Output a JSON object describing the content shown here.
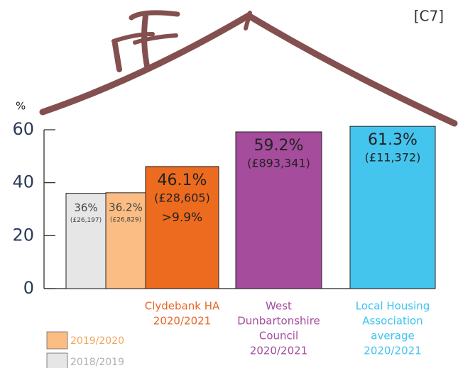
{
  "annotation": "[C7]",
  "chart_data": {
    "type": "bar",
    "y_label": "%",
    "ylim": [
      0,
      60
    ],
    "yticks": [
      0,
      20,
      40,
      60
    ],
    "bars": [
      {
        "name": "2018/2019",
        "value": 36,
        "value_label": "36%",
        "amount": "(£26,197)",
        "color": "#e6e6e6",
        "legend_color": "#b0b0b0"
      },
      {
        "name": "2019/2020",
        "value": 36.2,
        "value_label": "36.2%",
        "amount": "(£26,829)",
        "color": "#fbbd84",
        "legend_color": "#f2a65a"
      },
      {
        "label": [
          "Clydebank HA",
          "2020/2021"
        ],
        "value": 46.1,
        "value_label": "46.1%",
        "amount": "(£28,605)",
        "note": ">9.9%",
        "color": "#ec6b1e",
        "label_color": "#e8672a"
      },
      {
        "label": [
          "West",
          "Dunbartonshire",
          "Council",
          "2020/2021"
        ],
        "value": 59.2,
        "value_label": "59.2%",
        "amount": "(£893,341)",
        "color": "#a54c9c",
        "label_color": "#a54c9c"
      },
      {
        "label": [
          "Local Housing",
          "Association",
          "average",
          "2020/2021"
        ],
        "value": 61.3,
        "value_label": "61.3%",
        "amount": "(£11,372)",
        "color": "#44c5ee",
        "label_color": "#3fc3ee"
      }
    ]
  }
}
